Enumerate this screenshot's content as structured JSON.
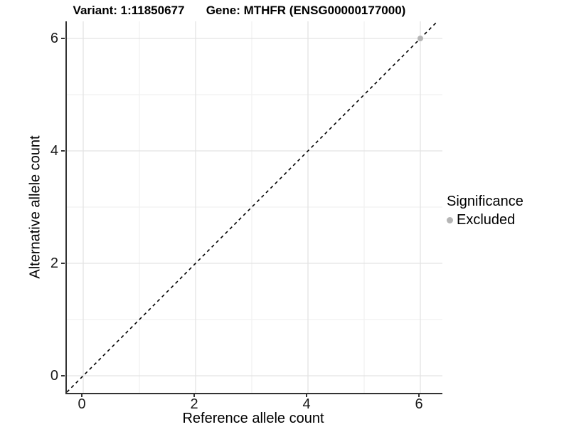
{
  "titles": {
    "variant": "Variant: 1:11850677",
    "gene": "Gene: MTHFR (ENSG00000177000)"
  },
  "legend": {
    "title": "Significance",
    "items": [
      {
        "label": "Excluded",
        "color": "#b5b5b5",
        "icon": "circle-point-icon"
      }
    ]
  },
  "colors": {
    "point": "#b5b5b5",
    "grid_major": "#e3e3e3",
    "grid_minor": "#f1f1f1",
    "axis_line": "#333333",
    "reference_line": "#000000",
    "background": "#ffffff",
    "text": "#1a1a1a"
  },
  "chart_data": {
    "type": "scatter",
    "title_left": "Variant: 1:11850677",
    "title_right": "Gene: MTHFR (ENSG00000177000)",
    "xlabel": "Reference allele count",
    "ylabel": "Alternative allele count",
    "xlim": [
      -0.3,
      6.4
    ],
    "ylim": [
      -0.3,
      6.3
    ],
    "x_ticks": [
      0,
      2,
      4,
      6
    ],
    "x_minor_ticks": [
      1,
      3,
      5
    ],
    "y_ticks": [
      0,
      2,
      4,
      6
    ],
    "y_minor_ticks": [
      1,
      3,
      5
    ],
    "grid": true,
    "legend_position": "right",
    "series": [
      {
        "name": "Excluded",
        "color": "#b5b5b5",
        "points": [
          {
            "x": 6,
            "y": 6
          }
        ]
      }
    ],
    "reference_line": {
      "style": "dashed",
      "slope": 1,
      "intercept": 0,
      "color": "#000000"
    }
  }
}
